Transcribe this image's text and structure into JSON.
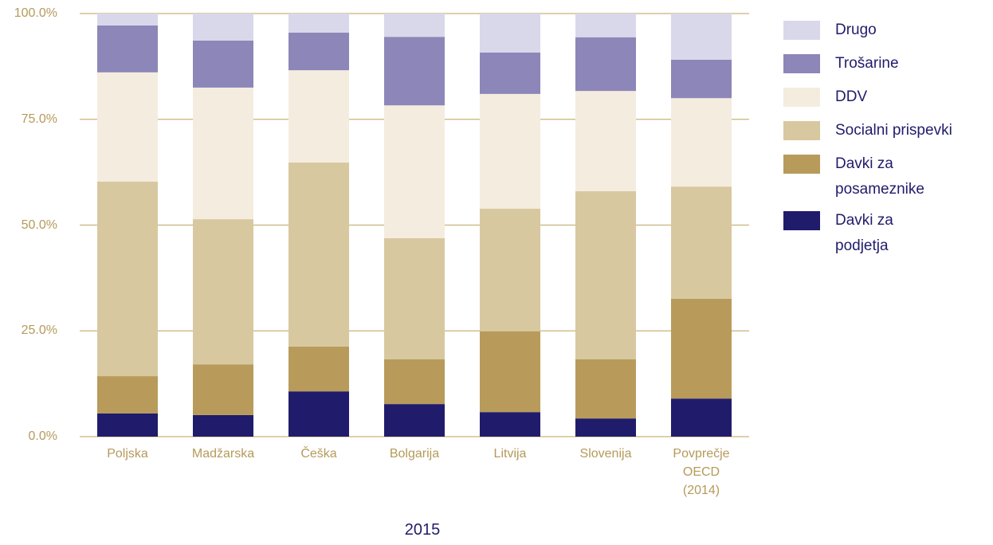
{
  "chart_data": {
    "type": "stacked_bar",
    "categories": [
      "Poljska",
      "Madžarska",
      "Češka",
      "Bolgarija",
      "Litvija",
      "Slovenija",
      "Povprečje OECD (2014)"
    ],
    "series": [
      {
        "name": "Davki za podjetja",
        "color": "#201c6b",
        "values": [
          5.5,
          5.1,
          10.7,
          7.7,
          5.8,
          4.3,
          9.0
        ]
      },
      {
        "name": "Davki za posameznike",
        "color": "#b89b5b",
        "values": [
          8.8,
          12.0,
          10.6,
          10.6,
          19.1,
          14.0,
          23.6
        ]
      },
      {
        "name": "Socialni prispevki",
        "color": "#d8c8a0",
        "values": [
          46.0,
          34.3,
          43.5,
          28.6,
          29.0,
          39.7,
          26.5
        ]
      },
      {
        "name": "DDV",
        "color": "#f5ece0",
        "values": [
          25.8,
          31.1,
          21.8,
          31.4,
          27.1,
          23.7,
          20.9
        ]
      },
      {
        "name": "Trošarine",
        "color": "#8c87b8",
        "values": [
          11.1,
          11.1,
          8.9,
          16.2,
          9.8,
          12.7,
          9.1
        ]
      },
      {
        "name": "Drugo",
        "color": "#d9d8ea",
        "values": [
          2.8,
          6.4,
          4.5,
          5.5,
          9.2,
          5.6,
          10.9
        ]
      }
    ],
    "x_label": "2015",
    "ylim": [
      0,
      100
    ],
    "yticks": [
      {
        "value": 0,
        "label": "0.0%"
      },
      {
        "value": 25,
        "label": "25.0%"
      },
      {
        "value": 50,
        "label": "50.0%"
      },
      {
        "value": 75,
        "label": "75.0%"
      },
      {
        "value": 100,
        "label": "100.0%"
      }
    ],
    "grid": true,
    "legend": "right"
  }
}
